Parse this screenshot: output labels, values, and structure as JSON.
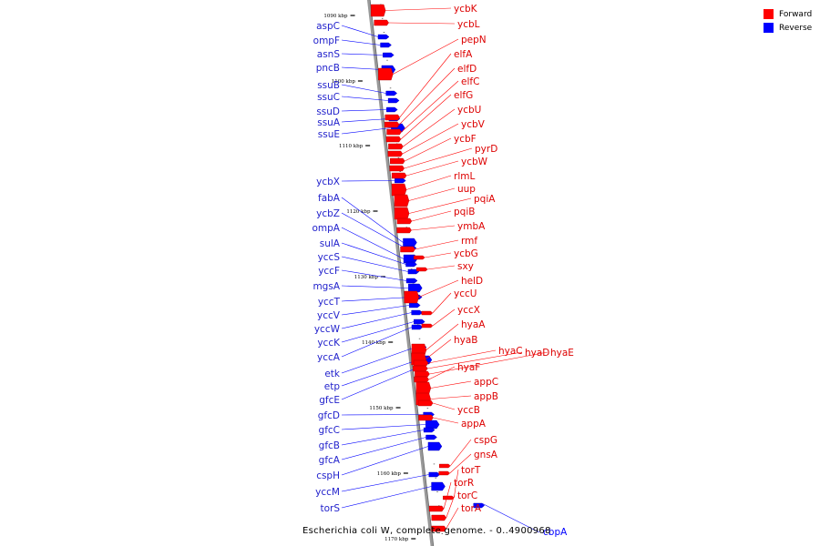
{
  "legend": {
    "forward_label": "Forward",
    "reverse_label": "Reverse",
    "forward_color": "#ff0000",
    "reverse_color": "#0000ff"
  },
  "caption": "Escherichia coli W, complete genome. - 0..4900968",
  "ticks": [
    "1090 kbp",
    "1100 kbp",
    "1110 kbp",
    "1120 kbp",
    "1130 kbp",
    "1140 kbp",
    "1150 kbp",
    "1160 kbp",
    "1170 kbp"
  ],
  "reverse_genes": [
    "aspC",
    "ompF",
    "asnS",
    "pncB",
    "ssuB",
    "ssuC",
    "ssuD",
    "ssuA",
    "ssuE",
    "ycbX",
    "fabA",
    "ycbZ",
    "ompA",
    "sulA",
    "yccS",
    "yccF",
    "mgsA",
    "yccT",
    "yccV",
    "yccW",
    "yccK",
    "yccA",
    "etk",
    "etp",
    "gfcE",
    "gfcD",
    "gfcC",
    "gfcB",
    "gfcA",
    "cspH",
    "yccM",
    "torS",
    "cbpA"
  ],
  "forward_genes": [
    "ycbK",
    "ycbL",
    "pepN",
    "elfA",
    "elfD",
    "elfC",
    "elfG",
    "ycbU",
    "ycbV",
    "ycbF",
    "pyrD",
    "ycbW",
    "rlmL",
    "uup",
    "pqiA",
    "pqiB",
    "ymbA",
    "rmf",
    "ycbG",
    "sxy",
    "helD",
    "yccU",
    "yccX",
    "hyaA",
    "hyaB",
    "hyaC",
    "hyaD",
    "hyaE",
    "hyaF",
    "appC",
    "appB",
    "yccB",
    "appA",
    "cspG",
    "gnsA",
    "torT",
    "torR",
    "torC",
    "torA"
  ]
}
